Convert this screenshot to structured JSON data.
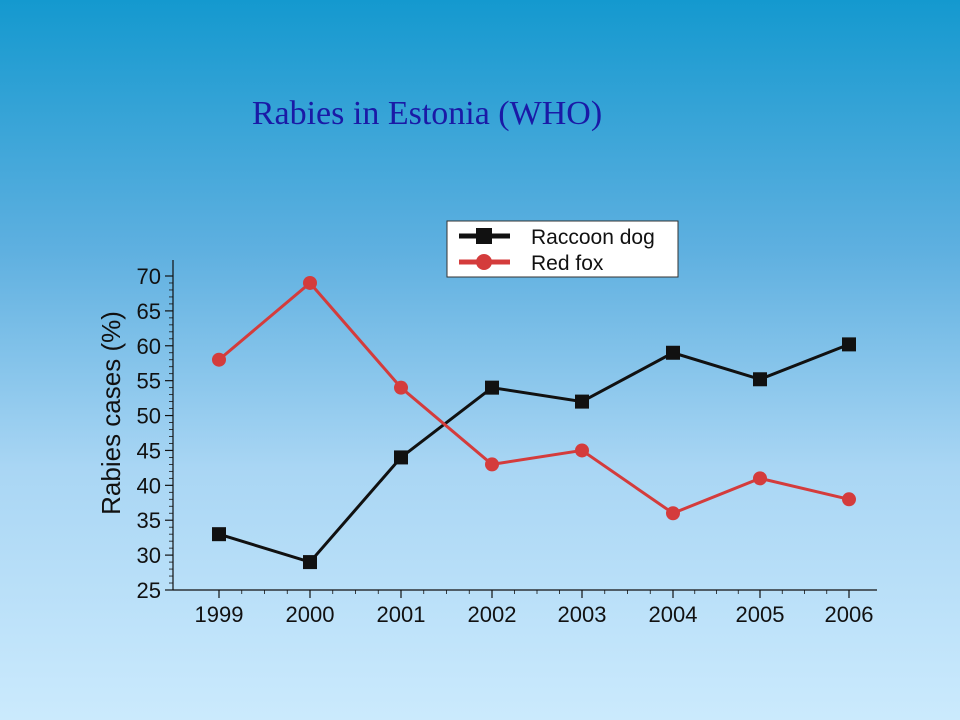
{
  "chart_data": {
    "type": "line",
    "title": "Rabies in Estonia (WHO)",
    "xlabel": "",
    "ylabel": "Rabies cases (%)",
    "x": [
      "1999",
      "2000",
      "2001",
      "2002",
      "2003",
      "2004",
      "2005",
      "2006"
    ],
    "ylim": [
      25,
      70
    ],
    "yticks": [
      25,
      30,
      35,
      40,
      45,
      50,
      55,
      60,
      65,
      70
    ],
    "grid": false,
    "legend_position": "top-right",
    "series": [
      {
        "name": "Raccoon dog",
        "color": "#111111",
        "marker": "square",
        "values": [
          33,
          29,
          44,
          54,
          52,
          59,
          55.2,
          60.2
        ]
      },
      {
        "name": "Red fox",
        "color": "#d43c3c",
        "marker": "circle",
        "values": [
          58,
          69,
          54,
          43,
          45,
          36,
          41,
          38
        ]
      }
    ]
  }
}
